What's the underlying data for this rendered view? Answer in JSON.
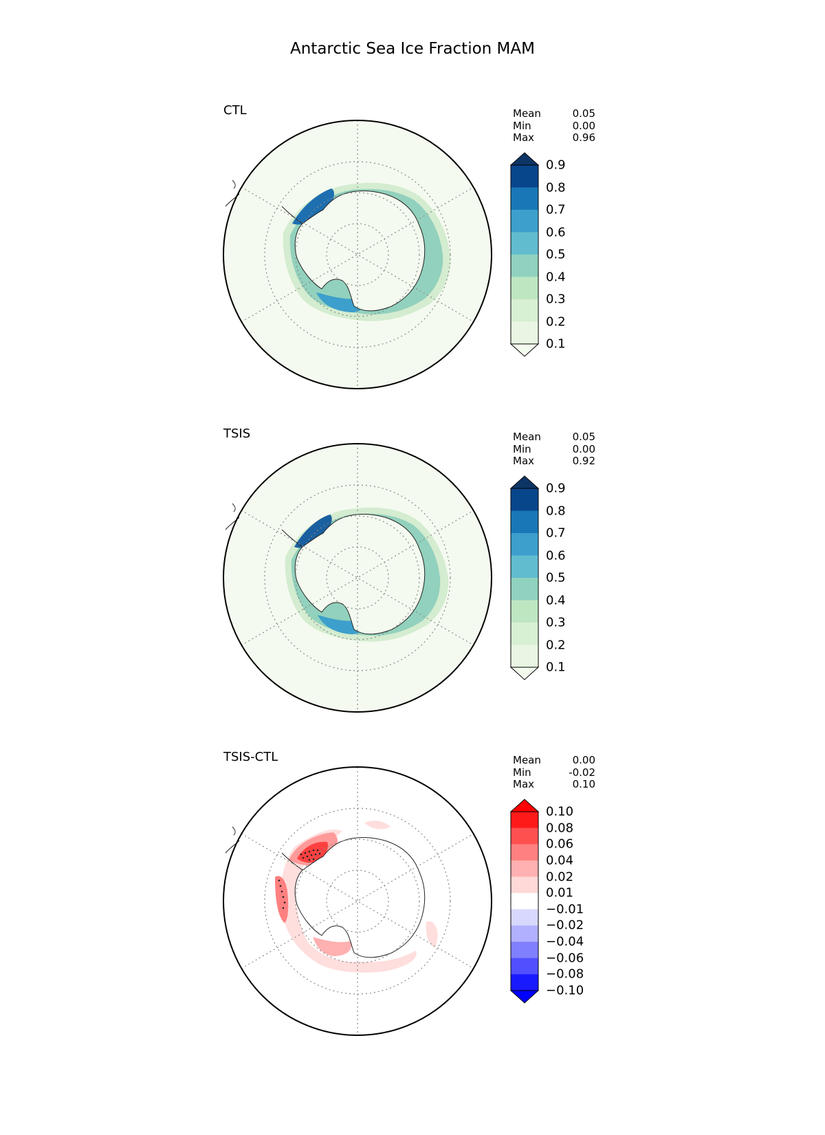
{
  "title": "Antarctic Sea Ice Fraction MAM",
  "stat_labels": {
    "mean": "Mean",
    "min": "Min",
    "max": "Max"
  },
  "panels": [
    {
      "label": "CTL",
      "stats": {
        "mean": "0.05",
        "min": "0.00",
        "max": "0.96"
      },
      "colorbar": {
        "ticks": [
          "0.9",
          "0.8",
          "0.7",
          "0.6",
          "0.5",
          "0.4",
          "0.3",
          "0.2",
          "0.1"
        ],
        "colors": [
          "#08468b",
          "#1a77b7",
          "#3d9fcc",
          "#62bccf",
          "#90d2bf",
          "#bee6c1",
          "#d7efd2",
          "#e9f6e3"
        ],
        "top_extend": "#0d3566",
        "bottom_extend": "#f3faee"
      },
      "map_background": "#f4faef"
    },
    {
      "label": "TSIS",
      "stats": {
        "mean": "0.05",
        "min": "0.00",
        "max": "0.92"
      },
      "colorbar": {
        "ticks": [
          "0.9",
          "0.8",
          "0.7",
          "0.6",
          "0.5",
          "0.4",
          "0.3",
          "0.2",
          "0.1"
        ],
        "colors": [
          "#08468b",
          "#1a77b7",
          "#3d9fcc",
          "#62bccf",
          "#90d2bf",
          "#bee6c1",
          "#d7efd2",
          "#e9f6e3"
        ],
        "top_extend": "#0d3566",
        "bottom_extend": "#f3faee"
      },
      "map_background": "#f4faef"
    },
    {
      "label": "TSIS-CTL",
      "stats": {
        "mean": "0.00",
        "min": "-0.02",
        "max": "0.10"
      },
      "colorbar": {
        "ticks": [
          "0.10",
          "0.08",
          "0.06",
          "0.04",
          "0.02",
          "0.01",
          "−0.01",
          "−0.02",
          "−0.04",
          "−0.06",
          "−0.08",
          "−0.10"
        ],
        "colors": [
          "#ff1a1a",
          "#ff5050",
          "#ff8080",
          "#ffb0b0",
          "#ffd8d8",
          "#ffffff",
          "#d8d8ff",
          "#b0b0ff",
          "#8080ff",
          "#5050ff",
          "#1a1aff"
        ],
        "top_extend": "#ff0000",
        "bottom_extend": "#0000ff"
      },
      "map_background": "#ffffff"
    }
  ]
}
